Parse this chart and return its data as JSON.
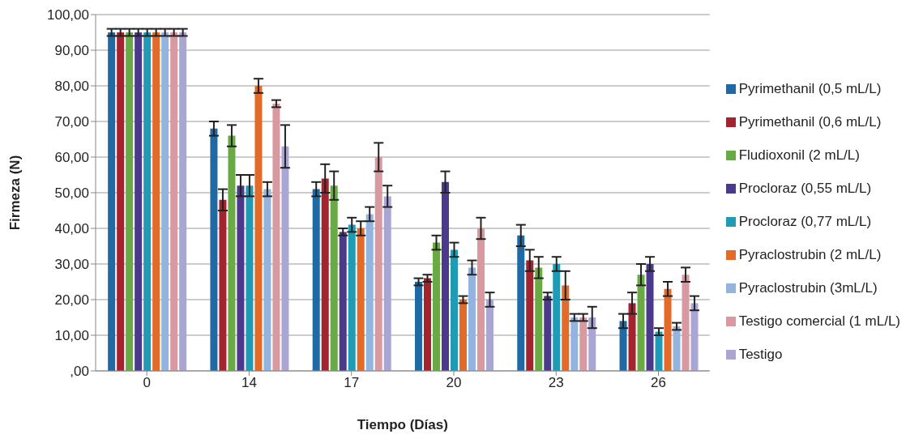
{
  "chart_data": {
    "type": "bar",
    "xlabel": "Tiempo (Días)",
    "ylabel": "Firmeza (N)",
    "categories": [
      "0",
      "14",
      "17",
      "20",
      "23",
      "26"
    ],
    "series": [
      {
        "name": "Pyrimethanil (0,5 mL/L)",
        "color": "#1f6aa5",
        "values": [
          95,
          68,
          51,
          25,
          38,
          14
        ],
        "errors": [
          1,
          2,
          2,
          1,
          3,
          2
        ]
      },
      {
        "name": "Pyrimethanil (0,6 mL/L)",
        "color": "#a3232f",
        "values": [
          95,
          48,
          54,
          26,
          31,
          19
        ],
        "errors": [
          1,
          3,
          4,
          1,
          3,
          3
        ]
      },
      {
        "name": "Fludioxonil (2 mL/L)",
        "color": "#6aaa44",
        "values": [
          95,
          66,
          52,
          36,
          29,
          27
        ],
        "errors": [
          1,
          3,
          4,
          2,
          3,
          3
        ]
      },
      {
        "name": "Procloraz (0,55 mL/L)",
        "color": "#4b3a8c",
        "values": [
          95,
          52,
          39,
          53,
          21,
          30
        ],
        "errors": [
          1,
          3,
          1,
          3,
          1,
          2
        ]
      },
      {
        "name": "Procloraz (0,77 mL/L)",
        "color": "#1f9bb5",
        "values": [
          95,
          52,
          41,
          34,
          30,
          11
        ],
        "errors": [
          1,
          3,
          2,
          2,
          2,
          1
        ]
      },
      {
        "name": "Pyraclostrubin (2 mL/L)",
        "color": "#e26b2a",
        "values": [
          95,
          80,
          40,
          20,
          24,
          23
        ],
        "errors": [
          1,
          2,
          2,
          1,
          4,
          2
        ]
      },
      {
        "name": "Pyraclostrubin (3mL/L)",
        "color": "#94b4e0",
        "values": [
          95,
          51,
          44,
          29,
          15,
          12.5
        ],
        "errors": [
          1,
          2,
          2,
          2,
          1,
          1
        ]
      },
      {
        "name": "Testigo comercial (1 mL/L)",
        "color": "#d89aa0",
        "values": [
          95,
          75,
          60,
          40,
          15,
          27
        ],
        "errors": [
          1,
          1,
          4,
          3,
          1,
          2
        ]
      },
      {
        "name": "Testigo",
        "color": "#a9a6d4",
        "values": [
          95,
          63,
          49,
          20,
          15,
          19
        ],
        "errors": [
          1,
          6,
          3,
          2,
          3,
          2
        ]
      }
    ],
    "ylim": [
      0,
      100
    ],
    "yticks": [
      {
        "value": 0,
        "label": ",00"
      },
      {
        "value": 10,
        "label": "10,00"
      },
      {
        "value": 20,
        "label": "20,00"
      },
      {
        "value": 30,
        "label": "30,00"
      },
      {
        "value": 40,
        "label": "40,00"
      },
      {
        "value": 50,
        "label": "50,00"
      },
      {
        "value": 60,
        "label": "60,00"
      },
      {
        "value": 70,
        "label": "70,00"
      },
      {
        "value": 80,
        "label": "80,00"
      },
      {
        "value": 90,
        "label": "90,00"
      },
      {
        "value": 100,
        "label": "100,00"
      }
    ],
    "grid": "y",
    "legend": "right"
  }
}
